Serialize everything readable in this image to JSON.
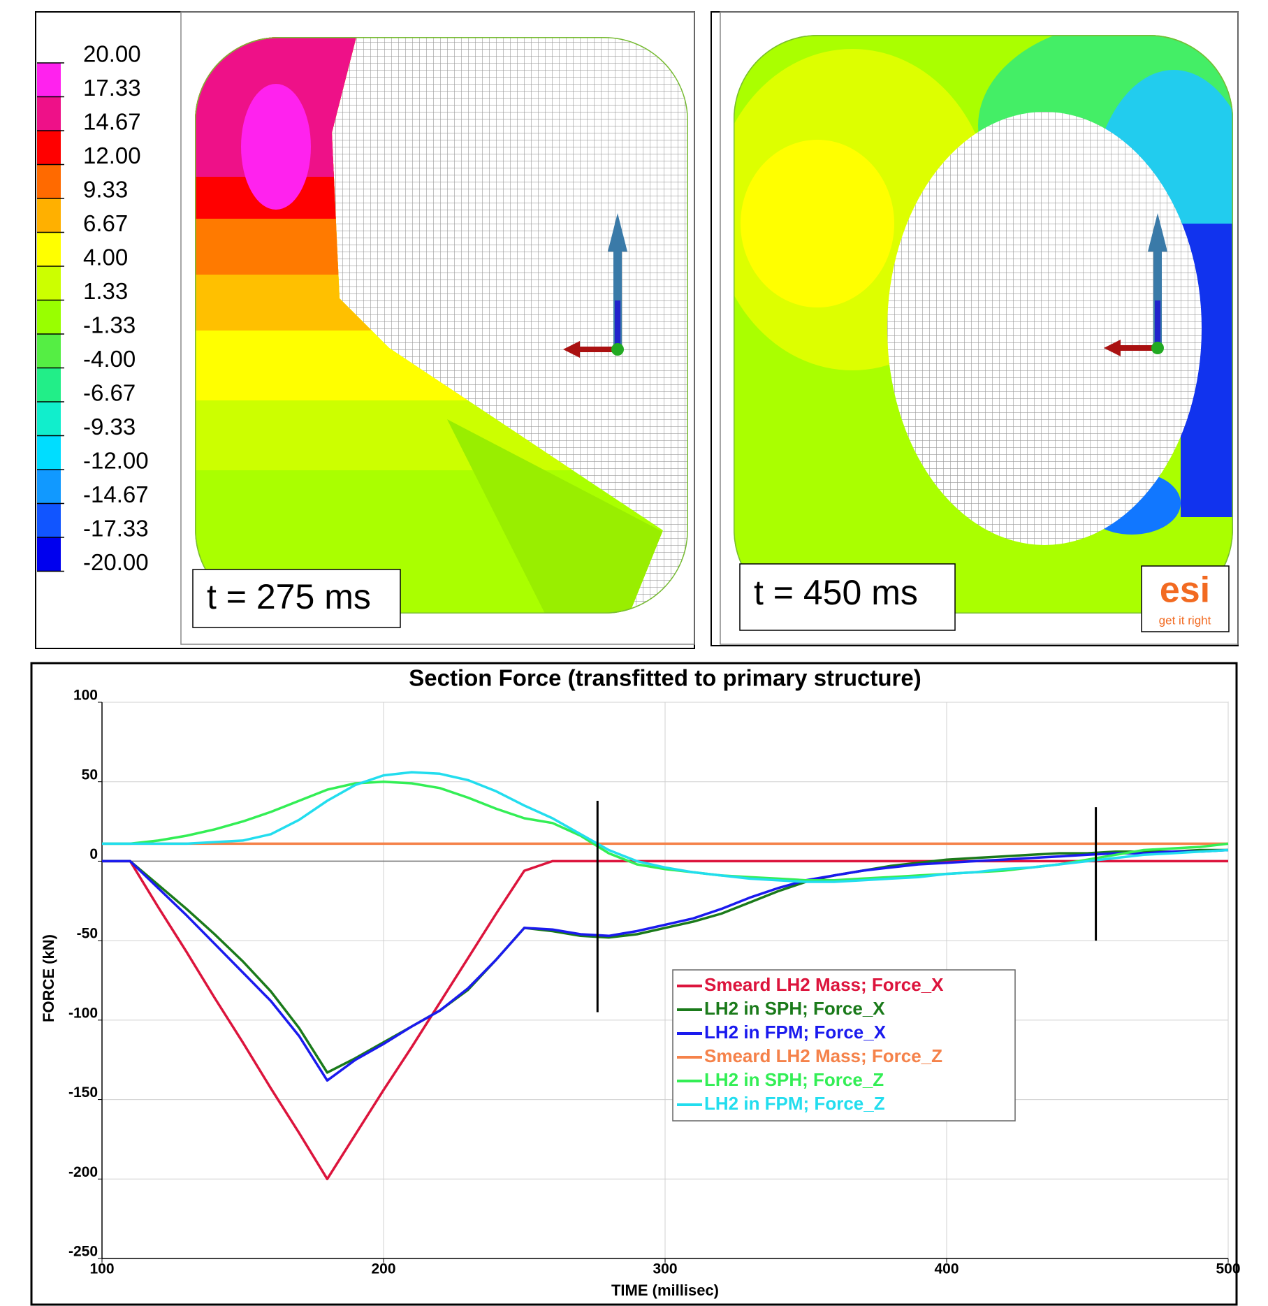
{
  "colorbar": {
    "ticks": [
      {
        "value": 20,
        "label": "20.00"
      },
      {
        "value": 17.33,
        "label": "17.33"
      },
      {
        "value": 14.67,
        "label": "14.67"
      },
      {
        "value": 12,
        "label": "12.00"
      },
      {
        "value": 9.33,
        "label": "9.33"
      },
      {
        "value": 6.67,
        "label": "6.67"
      },
      {
        "value": 4,
        "label": "4.00"
      },
      {
        "value": 1.33,
        "label": "1.33"
      },
      {
        "value": -1.33,
        "label": "-1.33"
      },
      {
        "value": -4,
        "label": "-4.00"
      },
      {
        "value": -6.67,
        "label": "-6.67"
      },
      {
        "value": -9.33,
        "label": "-9.33"
      },
      {
        "value": -12,
        "label": "-12.00"
      },
      {
        "value": -14.67,
        "label": "-14.67"
      },
      {
        "value": -17.33,
        "label": "-17.33"
      },
      {
        "value": -20,
        "label": "-20.00"
      }
    ],
    "colors": [
      "#ff22ee",
      "#ee1188",
      "#ff0000",
      "#ff6a00",
      "#ffb000",
      "#ffff00",
      "#ccff00",
      "#99ff00",
      "#55ee44",
      "#22ee88",
      "#11eecc",
      "#00ddff",
      "#1199ff",
      "#1155ff",
      "#0000ee"
    ]
  },
  "panels": [
    {
      "label": "t = 275 ms"
    },
    {
      "label": "t = 450 ms"
    }
  ],
  "logo": {
    "text": "esi",
    "tagline": "get it right"
  },
  "chart_data": {
    "type": "line",
    "title": "Section Force (transfitted to primary structure)",
    "x_label": "TIME (millisec)",
    "y_label": "FORCE (kN)",
    "x": [
      100,
      110,
      120,
      130,
      140,
      150,
      160,
      170,
      180,
      190,
      200,
      210,
      220,
      230,
      240,
      250,
      260,
      270,
      280,
      290,
      300,
      310,
      320,
      330,
      340,
      350,
      360,
      370,
      380,
      390,
      400,
      410,
      420,
      430,
      440,
      450,
      460,
      470,
      480,
      490,
      500
    ],
    "series": [
      {
        "name": "Smeard LH2 Mass; Force_X",
        "color": "#dc143c",
        "values": [
          0,
          0,
          -29,
          -57,
          -86,
          -114,
          -143,
          -171,
          -200,
          -172,
          -144,
          -117,
          -89,
          -61,
          -33,
          -6,
          0,
          0,
          0,
          0,
          0,
          0,
          0,
          0,
          0,
          0,
          0,
          0,
          0,
          0,
          0,
          0,
          0,
          0,
          0,
          0,
          0,
          0,
          0,
          0,
          0
        ]
      },
      {
        "name": "LH2 in SPH; Force_X",
        "color": "#1a7a1a",
        "values": [
          0,
          0,
          -15,
          -30,
          -46,
          -63,
          -82,
          -105,
          -133,
          -124,
          -114,
          -104,
          -94,
          -81,
          -62,
          -42,
          -44,
          -47,
          -48,
          -46,
          -42,
          -38,
          -33,
          -26,
          -19,
          -13,
          -9,
          -6,
          -3,
          -1,
          1,
          2,
          3,
          4,
          5,
          5,
          6,
          6,
          6,
          7,
          7
        ]
      },
      {
        "name": "LH2 in FPM; Force_X",
        "color": "#1a1aee",
        "values": [
          0,
          0,
          -17,
          -34,
          -52,
          -70,
          -88,
          -110,
          -138,
          -125,
          -115,
          -104,
          -94,
          -80,
          -62,
          -42,
          -43,
          -46,
          -47,
          -44,
          -40,
          -36,
          -30,
          -23,
          -17,
          -12,
          -9,
          -6,
          -4,
          -2,
          -1,
          0,
          1,
          2,
          3,
          4,
          5,
          5,
          6,
          6,
          7
        ]
      },
      {
        "name": "Smeard LH2 Mass; Force_Z",
        "color": "#f5824a",
        "values": [
          11,
          11,
          11,
          11,
          11,
          11,
          11,
          11,
          11,
          11,
          11,
          11,
          11,
          11,
          11,
          11,
          11,
          11,
          11,
          11,
          11,
          11,
          11,
          11,
          11,
          11,
          11,
          11,
          11,
          11,
          11,
          11,
          11,
          11,
          11,
          11,
          11,
          11,
          11,
          11,
          11
        ]
      },
      {
        "name": "LH2 in SPH; Force_Z",
        "color": "#33ee55",
        "values": [
          11,
          11,
          13,
          16,
          20,
          25,
          31,
          38,
          45,
          49,
          50,
          49,
          46,
          40,
          33,
          27,
          24,
          16,
          5,
          -2,
          -5,
          -7,
          -9,
          -10,
          -11,
          -12,
          -12,
          -11,
          -10,
          -9,
          -8,
          -7,
          -6,
          -4,
          -2,
          1,
          4,
          7,
          8,
          9,
          11
        ]
      },
      {
        "name": "LH2 in FPM; Force_Z",
        "color": "#22ddee",
        "values": [
          11,
          11,
          11,
          11,
          12,
          13,
          17,
          26,
          38,
          48,
          54,
          56,
          55,
          51,
          44,
          35,
          27,
          17,
          7,
          0,
          -4,
          -7,
          -9,
          -11,
          -12,
          -13,
          -13,
          -12,
          -11,
          -10,
          -8,
          -7,
          -5,
          -4,
          -2,
          0,
          2,
          4,
          5,
          6,
          7
        ]
      }
    ],
    "markers": [
      {
        "x": 276,
        "y0": 38,
        "y1": -95
      },
      {
        "x": 453,
        "y0": 34,
        "y1": -50
      }
    ],
    "xlim": [
      100,
      500
    ],
    "ylim": [
      -250,
      100
    ],
    "xticks": [
      100,
      200,
      300,
      400,
      500
    ],
    "yticks": [
      -250,
      -200,
      -150,
      -100,
      -50,
      0,
      50,
      100
    ],
    "grid": true,
    "legend": "center"
  }
}
